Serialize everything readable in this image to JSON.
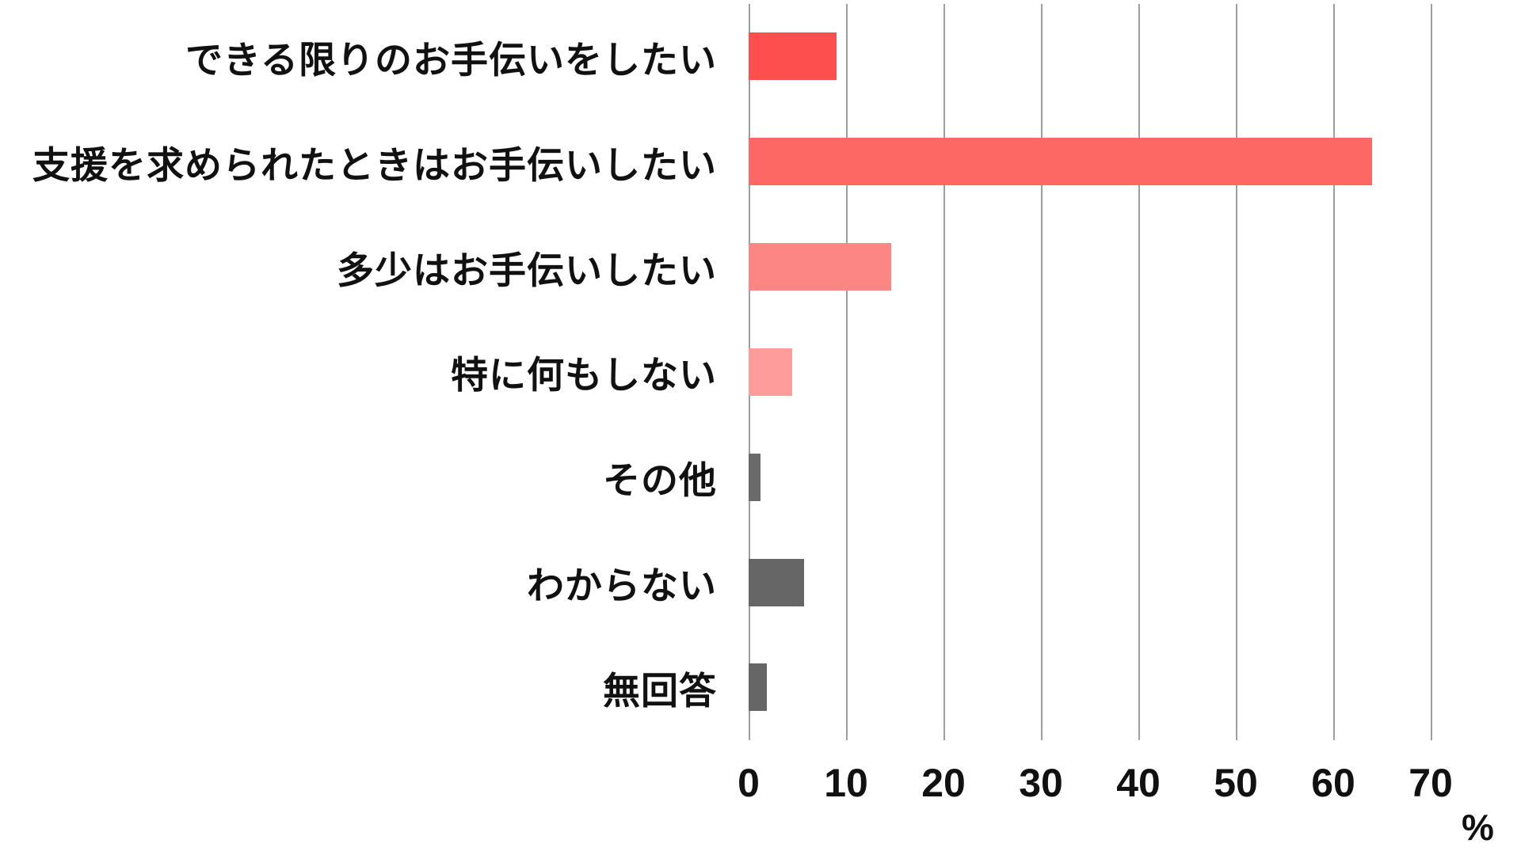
{
  "chart_data": {
    "type": "bar",
    "orientation": "horizontal",
    "title": "",
    "categories": [
      "できる限りのお手伝いをしたい",
      "支援を求められたときはお手伝いしたい",
      "多少はお手伝いしたい",
      "特に何もしない",
      "その他",
      "わからない",
      "無回答"
    ],
    "values": [
      9.0,
      64.0,
      14.6,
      4.5,
      1.2,
      5.7,
      1.9
    ],
    "bar_colors": [
      "#fd4f4d",
      "#fd6865",
      "#fc8683",
      "#fd9c9a",
      "#6a6a6a",
      "#666666",
      "#666666"
    ],
    "xlabel": "%",
    "xlim": [
      0,
      70
    ],
    "x_ticks": [
      0,
      10,
      20,
      30,
      40,
      50,
      60,
      70
    ],
    "grid": "vertical-gridlines-on",
    "gridline_color": "#9e9e9e",
    "legend": "none",
    "background_color": "#ffffff",
    "label_text_color": "#111111"
  }
}
